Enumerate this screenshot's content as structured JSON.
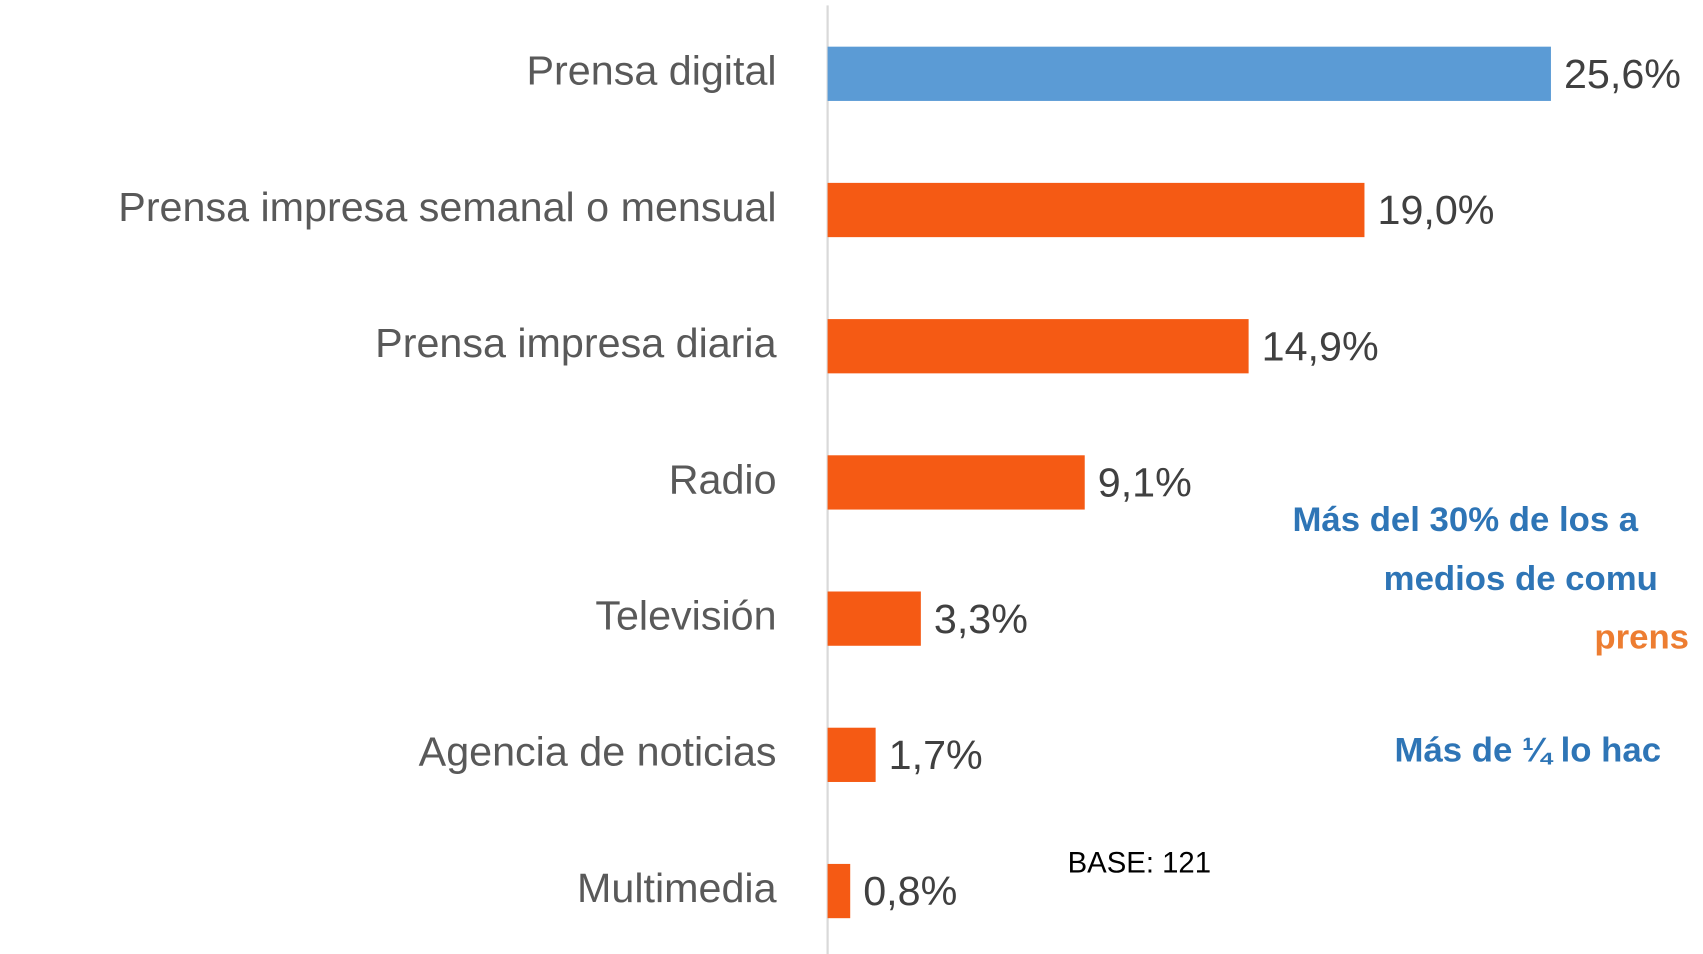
{
  "chart_data": {
    "type": "barh",
    "categories": [
      "Prensa digital",
      "Prensa impresa semanal o mensual",
      "Prensa impresa diaria",
      "Radio",
      "Televisión",
      "Agencia de noticias",
      "Multimedia"
    ],
    "values": [
      25.6,
      19.0,
      14.9,
      9.1,
      3.3,
      1.7,
      0.8
    ],
    "value_labels": [
      "25,6%",
      "19,0%",
      "14,9%",
      "9,1%",
      "3,3%",
      "1,7%",
      "0,8%"
    ],
    "colors": [
      "#5b9bd5",
      "#f55a14",
      "#f55a14",
      "#f55a14",
      "#f55a14",
      "#f55a14",
      "#f55a14"
    ],
    "annotations": [
      {
        "text": "Más del 30% de los a",
        "color": "#2e75b6"
      },
      {
        "text": "medios de comu",
        "color": "#2e75b6"
      },
      {
        "text": "prens",
        "color": "#ed7d31"
      },
      {
        "text": "Más de ¼ lo hac",
        "color": "#2e75b6"
      }
    ],
    "base_note": "BASE: 121"
  }
}
